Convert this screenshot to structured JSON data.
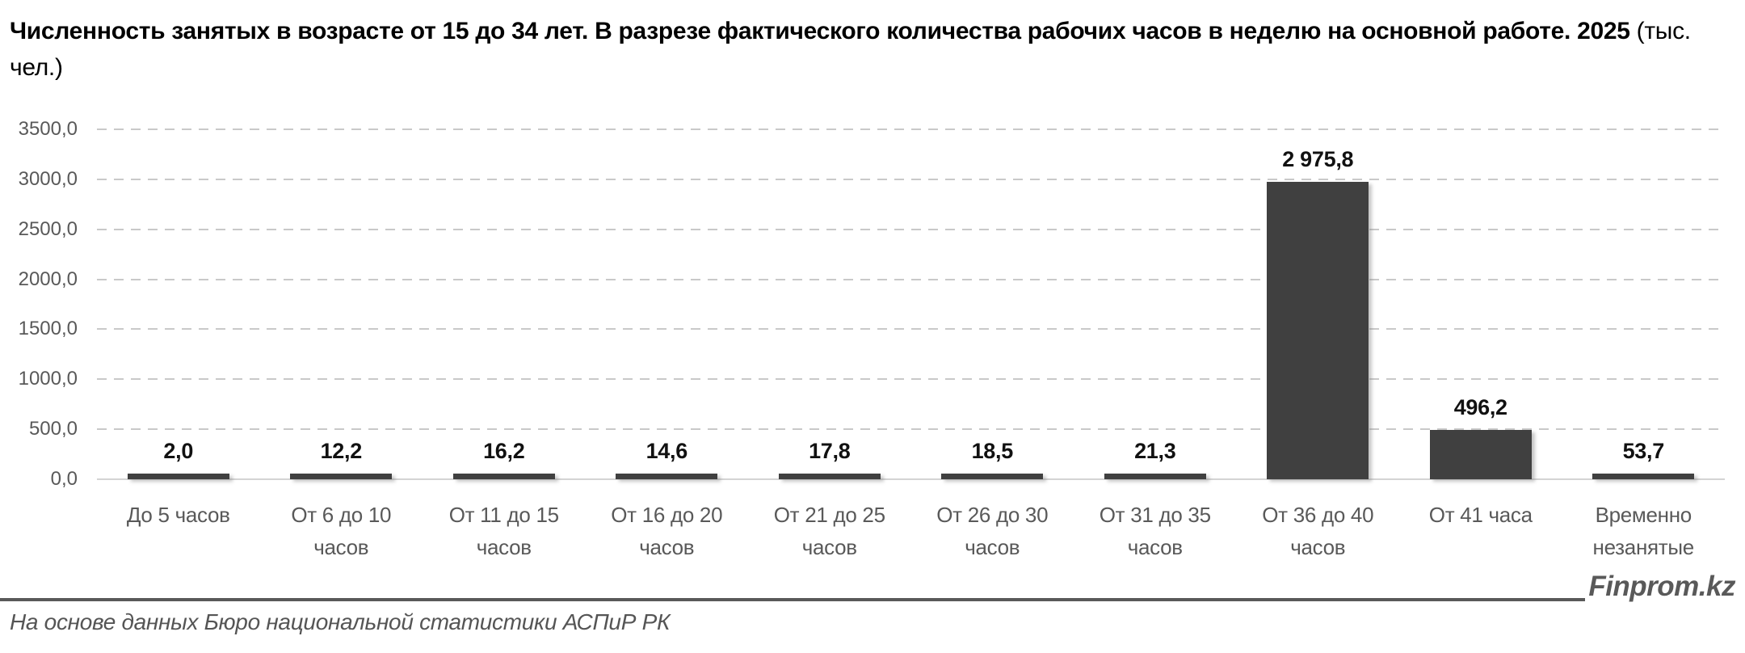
{
  "title": {
    "main": "Численность занятых в возрасте от 15 до 34 лет. В разрезе фактического количества рабочих часов в неделю на основной работе. 2025",
    "unit": " (тыс. чел.)"
  },
  "chart_data": {
    "type": "bar",
    "title": "Численность занятых в возрасте от 15 до 34 лет. В разрезе фактического количества рабочих часов в неделю на основной работе. 2025 (тыс. чел.)",
    "categories": [
      "До 5 часов",
      "От 6 до 10\nчасов",
      "От 11 до 15\nчасов",
      "От 16 до 20\nчасов",
      "От 21 до 25\nчасов",
      "От 26 до 30\nчасов",
      "От 31 до 35\nчасов",
      "От 36 до 40\nчасов",
      "От 41 часа",
      "Временно\nнезанятые"
    ],
    "values": [
      2.0,
      12.2,
      16.2,
      14.6,
      17.8,
      18.5,
      21.3,
      2975.8,
      496.2,
      53.7
    ],
    "value_labels": [
      "2,0",
      "12,2",
      "16,2",
      "14,6",
      "17,8",
      "18,5",
      "21,3",
      "2 975,8",
      "496,2",
      "53,7"
    ],
    "y_ticks": [
      "3500,0",
      "3000,0",
      "2500,0",
      "2000,0",
      "1500,0",
      "1000,0",
      "500,0",
      "0,0"
    ],
    "ylim": [
      0,
      3500
    ],
    "xlabel": "",
    "ylabel": "",
    "grid": "horizontal-dashed",
    "legend": "none",
    "bar_color": "#404040"
  },
  "footer": {
    "source": "На основе данных Бюро национальной статистики АСПиР РК",
    "brand": "Finprom.kz"
  },
  "colors": {
    "bar": "#404040",
    "axis_text": "#595959",
    "grid": "#c9c9c9",
    "baseline": "#d4d4d4",
    "title_text": "#000000",
    "footer_rule": "#595959"
  }
}
